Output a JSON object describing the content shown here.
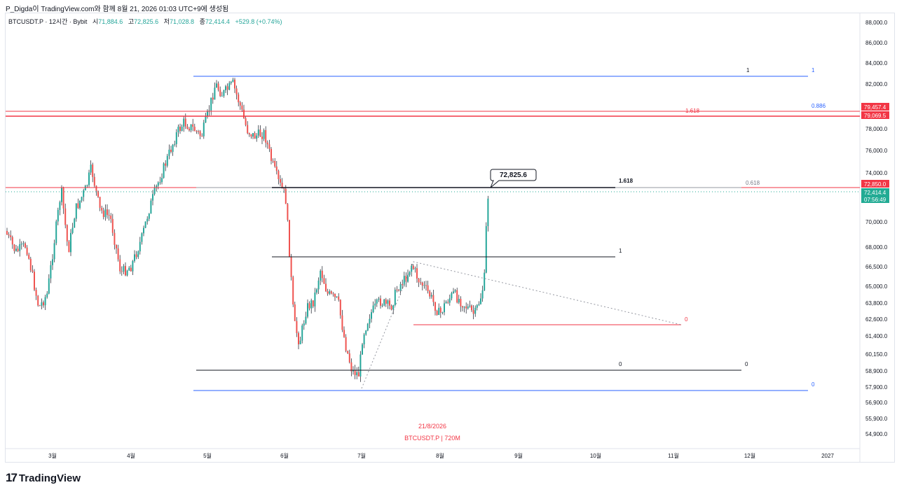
{
  "header": {
    "attribution": "P_Digda이 TradingView.com와 함께 8월 21, 2026 01:03 UTC+9에 생성됨"
  },
  "legend": {
    "symbol": "BTCUSDT.P · 12시간 · Bybit",
    "open_label": "시",
    "open": "71,884.6",
    "high_label": "고",
    "high": "72,825.6",
    "low_label": "저",
    "low": "71,028.8",
    "close_label": "종",
    "close": "72,414.4",
    "change": "+529.8 (+0.74%)"
  },
  "footer": {
    "brand": "TradingView"
  },
  "chart_data": {
    "type": "candlestick",
    "symbol": "BTCUSDT.P",
    "interval": "12시간",
    "exchange": "Bybit",
    "y_ticks": [
      "88,000.0",
      "86,000.0",
      "84,000.0",
      "82,000.0",
      "78,000.0",
      "76,000.0",
      "74,000.0",
      "70,000.0",
      "68,000.0",
      "66,500.0",
      "65,000.0",
      "63,800.0",
      "62,600.0",
      "61,400.0",
      "60,150.0",
      "58,900.0",
      "57,900.0",
      "56,900.0",
      "55,900.0",
      "54,900.0"
    ],
    "x_ticks": [
      "3월",
      "4월",
      "5월",
      "6월",
      "7월",
      "8월",
      "9월",
      "10월",
      "11월",
      "12월",
      "2027"
    ],
    "price_labels": [
      {
        "text": "79,457.4",
        "color": "#f23645"
      },
      {
        "text": "79,069.5",
        "color": "#f23645"
      },
      {
        "text": "72,850.0",
        "color": "#f23645"
      },
      {
        "text": "72,414.4",
        "color": "#22ab94"
      },
      {
        "text": "07:56:49",
        "color": "#22ab94"
      }
    ],
    "callout": "72,825.6",
    "watermark_date": "21/8/2026",
    "watermark_symbol": "BTCUSDT.P | 720M",
    "level_labels": {
      "blue_top_1": "1",
      "blue_top_1b": "1",
      "blue_0886": "0.886",
      "red_1618": "1.618",
      "black_1618": "1.618",
      "gray_0618": "0.618",
      "black_1": "1",
      "red_0": "0",
      "black_0": "0",
      "gray_0": "0",
      "blue_0": "0"
    },
    "colors": {
      "up": "#26a69a",
      "down": "#ef5350",
      "wick": "#131722",
      "blue_line": "#2962ff",
      "red_line": "#f23645",
      "dark_line": "#131722",
      "current_price": "#22ab94"
    }
  }
}
